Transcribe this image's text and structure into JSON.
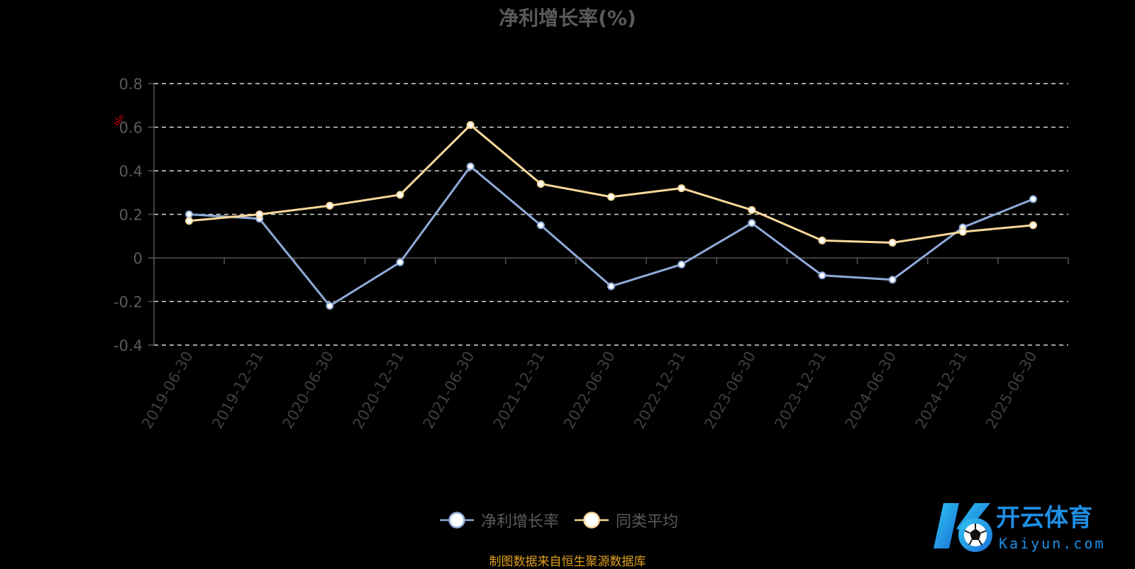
{
  "chart_data": {
    "type": "line",
    "title": "净利增长率(%)",
    "ylabel": "%",
    "xlabel": "",
    "categories": [
      "2019-06-30",
      "2019-12-31",
      "2020-06-30",
      "2020-12-31",
      "2021-06-30",
      "2021-12-31",
      "2022-06-30",
      "2022-12-31",
      "2023-06-30",
      "2023-12-31",
      "2024-06-30",
      "2024-12-31",
      "2025-06-30"
    ],
    "series": [
      {
        "name": "净利增长率",
        "color": "#8fabd9",
        "values": [
          0.2,
          0.18,
          -0.22,
          -0.02,
          0.42,
          0.15,
          -0.13,
          -0.03,
          0.16,
          -0.08,
          -0.1,
          0.14,
          0.27
        ]
      },
      {
        "name": "同类平均",
        "color": "#f9d89a",
        "values": [
          0.17,
          0.2,
          0.24,
          0.29,
          0.61,
          0.34,
          0.28,
          0.32,
          0.22,
          0.08,
          0.07,
          0.12,
          0.15
        ]
      }
    ],
    "ylim": [
      -0.4,
      0.8
    ],
    "yticks": [
      -0.4,
      -0.2,
      0,
      0.2,
      0.4,
      0.6,
      0.8
    ],
    "ytick_labels": [
      "-0.4",
      "-0.2",
      "0",
      "0.2",
      "0.4",
      "0.6",
      "0.8"
    ],
    "grid": true,
    "legend_position": "bottom-center"
  },
  "footer": {
    "source": "制图数据来自恒生聚源数据库"
  },
  "logo": {
    "name": "开云体育",
    "url_text": "Kaiyun.com",
    "colors": {
      "primary": "#1e8fe6",
      "secondary": "#2fc6f2"
    }
  }
}
